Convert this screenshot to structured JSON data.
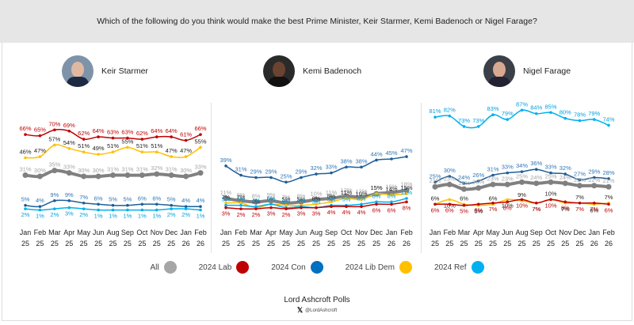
{
  "header": {
    "question": "Which of the following do you think would make the best Prime Minister, Keir Starmer, Kemi Badenoch or Nigel Farage?"
  },
  "footer": {
    "brand": "Lord Ashcroft Polls",
    "handle": "@LordAshcroft",
    "icon": "x-logo-icon"
  },
  "legend": [
    {
      "label": "All",
      "color": "#a6a6a6"
    },
    {
      "label": "2024 Lab",
      "color": "#c00000"
    },
    {
      "label": "2024 Con",
      "color": "#0070c0"
    },
    {
      "label": "2024 Lib Dem",
      "color": "#ffc000"
    },
    {
      "label": "2024 Ref",
      "color": "#00b0f0"
    }
  ],
  "chart_data": [
    {
      "type": "line",
      "title": "Keir Starmer",
      "categories": [
        "Jan 25",
        "Feb 25",
        "Mar 25",
        "Apr 25",
        "May 25",
        "Jun 25",
        "Aug 25",
        "Sep 25",
        "Oct 25",
        "Nov 25",
        "Dec 25",
        "Jan 26",
        "Feb 26"
      ],
      "ylim": [
        0,
        100
      ],
      "series": [
        {
          "name": "2024 Lab",
          "color": "#c00000",
          "label_color": "#c00000",
          "values": [
            66,
            65,
            70,
            69,
            62,
            64,
            63,
            63,
            62,
            64,
            64,
            61,
            66
          ]
        },
        {
          "name": "2024 Lib Dem",
          "color": "#ffc000",
          "label_color": "#222222",
          "values": [
            46,
            47,
            57,
            54,
            51,
            49,
            51,
            55,
            51,
            51,
            47,
            47,
            55
          ]
        },
        {
          "name": "All",
          "color": "#808080",
          "label_color": "#a6a6a6",
          "values": [
            31,
            30,
            35,
            33,
            30,
            30,
            31,
            31,
            31,
            32,
            31,
            30,
            33
          ]
        },
        {
          "name": "2024 Con",
          "color": "#1f5f99",
          "label_color": "#2e75b6",
          "values": [
            5,
            4,
            9,
            9,
            7,
            6,
            5,
            5,
            6,
            6,
            5,
            4,
            4
          ]
        },
        {
          "name": "2024 Ref",
          "color": "#00b0f0",
          "label_color": "#00a0e0",
          "values": [
            2,
            1,
            2,
            3,
            2,
            1,
            1,
            1,
            1,
            1,
            2,
            2,
            1
          ]
        }
      ]
    },
    {
      "type": "line",
      "title": "Kemi Badenoch",
      "categories": [
        "Jan 25",
        "Feb 25",
        "Mar 25",
        "Apr 25",
        "May 25",
        "Jun 25",
        "Aug 25",
        "Sep 25",
        "Oct 25",
        "Nov 25",
        "Dec 25",
        "Jan 26",
        "Feb 26"
      ],
      "ylim": [
        0,
        100
      ],
      "series": [
        {
          "name": "2024 Con",
          "color": "#1f5f99",
          "label_color": "#2e75b6",
          "values": [
            39,
            31,
            29,
            29,
            25,
            29,
            32,
            33,
            38,
            38,
            44,
            45,
            47
          ]
        },
        {
          "name": "All",
          "color": "#808080",
          "label_color": "#a6a6a6",
          "values": [
            11,
            9,
            8,
            9,
            7,
            8,
            10,
            11,
            13,
            12,
            15,
            16,
            18
          ]
        },
        {
          "name": "2024 Lib Dem",
          "color": "#ffc000",
          "label_color": "#222222",
          "values": [
            7,
            7,
            3,
            6,
            5,
            5,
            6,
            8,
            11,
            10,
            15,
            14,
            15
          ]
        },
        {
          "name": "2024 Ref",
          "color": "#00b0f0",
          "label_color": "#00a0e0",
          "values": [
            5,
            5,
            4,
            6,
            3,
            4,
            3,
            5,
            5,
            6,
            8,
            8,
            11
          ]
        },
        {
          "name": "2024 Lab",
          "color": "#c00000",
          "label_color": "#c00000",
          "values": [
            3,
            2,
            2,
            3,
            2,
            3,
            3,
            4,
            4,
            4,
            6,
            6,
            8
          ]
        }
      ]
    },
    {
      "type": "line",
      "title": "Nigel Farage",
      "categories": [
        "Jan 25",
        "Feb 25",
        "Mar 25",
        "Apr 25",
        "May 25",
        "Jun 25",
        "Aug 25",
        "Sep 25",
        "Oct 25",
        "Nov 25",
        "Dec 25",
        "Jan 26",
        "Feb 26"
      ],
      "ylim": [
        0,
        100
      ],
      "series": [
        {
          "name": "2024 Ref",
          "color": "#00b0f0",
          "label_color": "#00a0e0",
          "values": [
            81,
            82,
            73,
            73,
            83,
            79,
            87,
            84,
            85,
            80,
            78,
            79,
            74
          ]
        },
        {
          "name": "2024 Con",
          "color": "#1f5f99",
          "label_color": "#2e75b6",
          "values": [
            25,
            30,
            24,
            26,
            31,
            33,
            34,
            36,
            33,
            32,
            27,
            29,
            28
          ]
        },
        {
          "name": "All",
          "color": "#808080",
          "label_color": "#a6a6a6",
          "values": [
            21,
            23,
            19,
            20,
            23,
            23,
            25,
            24,
            25,
            24,
            22,
            22,
            21
          ]
        },
        {
          "name": "2024 Lib Dem",
          "color": "#ffc000",
          "label_color": "#222222",
          "values": [
            6,
            10,
            6,
            5,
            6,
            10,
            9,
            7,
            10,
            7,
            7,
            6,
            7
          ]
        },
        {
          "name": "2024 Lab",
          "color": "#c00000",
          "label_color": "#c00000",
          "values": [
            6,
            6,
            5,
            6,
            7,
            8,
            10,
            7,
            10,
            8,
            7,
            7,
            6
          ]
        }
      ]
    }
  ]
}
